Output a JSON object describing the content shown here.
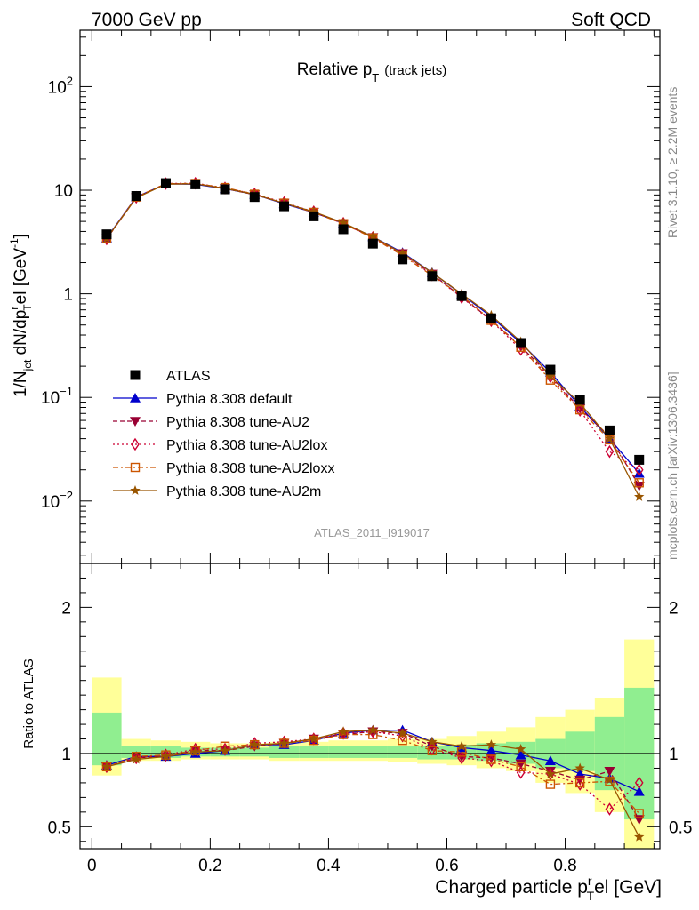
{
  "header": {
    "left": "7000 GeV pp",
    "right": "Soft QCD"
  },
  "side_labels": {
    "rivet": "Rivet 3.1.10, ≥ 2.2M events",
    "mcplots": "mcplots.cern.ch [arXiv:1306.3436]"
  },
  "chart_data": [
    {
      "type": "line",
      "title": "Relative p_T (track jets)",
      "ylabel": "1/N_jet dN/dp_T^rel [GeV^-1]",
      "xlabel": "Charged particle p_T^rel [GeV]",
      "yscale": "log",
      "ylim": [
        0.0025,
        350
      ],
      "xlim": [
        -0.02,
        0.96
      ],
      "yticks": [
        "10^-2",
        "10^-1",
        "1",
        "10",
        "10^2"
      ],
      "xticks": [
        "0",
        "0.2",
        "0.4",
        "0.6",
        "0.8"
      ],
      "watermark": "ATLAS_2011_I919017",
      "legend_position": "bottom-left",
      "x": [
        0.025,
        0.075,
        0.125,
        0.175,
        0.225,
        0.275,
        0.325,
        0.375,
        0.425,
        0.475,
        0.525,
        0.575,
        0.625,
        0.675,
        0.725,
        0.775,
        0.825,
        0.875,
        0.925
      ],
      "series": [
        {
          "name": "ATLAS",
          "color": "#000000",
          "marker": "square",
          "dash": "none",
          "values": [
            3.75,
            8.8,
            11.7,
            11.4,
            10.2,
            8.6,
            7.0,
            5.6,
            4.2,
            3.05,
            2.15,
            1.48,
            0.95,
            0.58,
            0.335,
            0.185,
            0.095,
            0.048,
            0.025
          ]
        },
        {
          "name": "Pythia 8.308 default",
          "color": "#0000cc",
          "marker": "triangle-up",
          "dash": "none",
          "values": [
            3.45,
            8.6,
            11.5,
            11.4,
            10.35,
            9.1,
            7.4,
            6.1,
            4.8,
            3.55,
            2.5,
            1.6,
            0.99,
            0.6,
            0.335,
            0.175,
            0.082,
            0.04,
            0.0185
          ]
        },
        {
          "name": "Pythia 8.308 tune-AU2",
          "color": "#990033",
          "marker": "triangle-down",
          "dash": "5,3",
          "values": [
            3.4,
            8.5,
            11.5,
            11.6,
            10.4,
            9.05,
            7.5,
            6.15,
            4.75,
            3.5,
            2.45,
            1.55,
            0.93,
            0.56,
            0.31,
            0.162,
            0.078,
            0.042,
            0.014
          ]
        },
        {
          "name": "Pythia 8.308 tune-AU2lox",
          "color": "#cc0033",
          "marker": "diamond-open",
          "dash": "2,3",
          "values": [
            3.38,
            8.55,
            11.6,
            11.7,
            10.5,
            9.2,
            7.6,
            6.2,
            4.8,
            3.5,
            2.4,
            1.52,
            0.92,
            0.55,
            0.29,
            0.158,
            0.075,
            0.03,
            0.02
          ]
        },
        {
          "name": "Pythia 8.308 tune-AU2loxx",
          "color": "#cc5500",
          "marker": "square-open",
          "dash": "6,3,2,3",
          "values": [
            3.42,
            8.6,
            11.55,
            11.6,
            10.6,
            9.15,
            7.5,
            6.1,
            4.75,
            3.45,
            2.35,
            1.5,
            0.96,
            0.555,
            0.305,
            0.147,
            0.076,
            0.039,
            0.015
          ]
        },
        {
          "name": "Pythia 8.308 tune-AU2m",
          "color": "#995500",
          "marker": "star",
          "dash": "none",
          "values": [
            3.42,
            8.45,
            11.45,
            11.5,
            10.4,
            9.1,
            7.5,
            6.2,
            4.85,
            3.55,
            2.45,
            1.6,
            1.0,
            0.62,
            0.345,
            0.16,
            0.088,
            0.04,
            0.011
          ]
        }
      ]
    },
    {
      "type": "line",
      "ylabel": "Ratio to ATLAS",
      "xlabel": "Charged particle p_T^rel [GeV]",
      "ylim": [
        0.35,
        2.3
      ],
      "xlim": [
        -0.02,
        0.96
      ],
      "yticks": [
        "0.5",
        "1",
        "2"
      ],
      "xticks": [
        "0",
        "0.2",
        "0.4",
        "0.6",
        "0.8"
      ],
      "reference": 1,
      "bands": {
        "inner_color": "#90ee90",
        "outer_color": "#ffff99",
        "inner": [
          [
            0.92,
            1.28
          ],
          [
            0.97,
            1.05
          ],
          [
            0.97,
            1.05
          ],
          [
            0.98,
            1.04
          ],
          [
            0.98,
            1.04
          ],
          [
            0.98,
            1.04
          ],
          [
            0.97,
            1.05
          ],
          [
            0.97,
            1.05
          ],
          [
            0.97,
            1.05
          ],
          [
            0.97,
            1.05
          ],
          [
            0.97,
            1.05
          ],
          [
            0.96,
            1.05
          ],
          [
            0.96,
            1.06
          ],
          [
            0.95,
            1.07
          ],
          [
            0.93,
            1.08
          ],
          [
            0.9,
            1.1
          ],
          [
            0.88,
            1.15
          ],
          [
            0.75,
            1.25
          ],
          [
            0.55,
            1.45
          ]
        ],
        "outer": [
          [
            0.85,
            1.52
          ],
          [
            0.95,
            1.1
          ],
          [
            0.95,
            1.09
          ],
          [
            0.96,
            1.08
          ],
          [
            0.96,
            1.07
          ],
          [
            0.96,
            1.07
          ],
          [
            0.95,
            1.08
          ],
          [
            0.95,
            1.08
          ],
          [
            0.95,
            1.09
          ],
          [
            0.95,
            1.09
          ],
          [
            0.94,
            1.1
          ],
          [
            0.93,
            1.1
          ],
          [
            0.92,
            1.12
          ],
          [
            0.9,
            1.15
          ],
          [
            0.88,
            1.18
          ],
          [
            0.8,
            1.25
          ],
          [
            0.73,
            1.3
          ],
          [
            0.6,
            1.38
          ],
          [
            0.35,
            1.78
          ]
        ]
      },
      "series": [
        {
          "name": "Pythia 8.308 default",
          "color": "#0000cc",
          "marker": "triangle-up",
          "dash": "none",
          "values": [
            0.92,
            0.98,
            0.98,
            1.0,
            1.02,
            1.06,
            1.06,
            1.09,
            1.14,
            1.16,
            1.16,
            1.08,
            1.04,
            1.02,
            0.99,
            0.95,
            0.86,
            0.83,
            0.74
          ]
        },
        {
          "name": "Pythia 8.308 tune-AU2",
          "color": "#990033",
          "marker": "triangle-down",
          "dash": "5,3",
          "values": [
            0.91,
            0.97,
            0.98,
            1.02,
            1.02,
            1.05,
            1.07,
            1.1,
            1.13,
            1.15,
            1.14,
            1.05,
            0.98,
            0.97,
            0.93,
            0.88,
            0.82,
            0.88,
            0.55
          ]
        },
        {
          "name": "Pythia 8.308 tune-AU2lox",
          "color": "#cc0033",
          "marker": "diamond-open",
          "dash": "2,3",
          "values": [
            0.91,
            0.97,
            0.99,
            1.03,
            1.03,
            1.07,
            1.08,
            1.1,
            1.14,
            1.15,
            1.12,
            1.03,
            0.97,
            0.95,
            0.87,
            0.86,
            0.79,
            0.62,
            0.8
          ]
        },
        {
          "name": "Pythia 8.308 tune-AU2loxx",
          "color": "#cc5500",
          "marker": "square-open",
          "dash": "6,3,2,3",
          "values": [
            0.91,
            0.98,
            0.99,
            1.02,
            1.05,
            1.06,
            1.07,
            1.09,
            1.13,
            1.13,
            1.09,
            1.02,
            1.01,
            0.96,
            0.91,
            0.79,
            0.8,
            0.81,
            0.59
          ]
        },
        {
          "name": "Pythia 8.308 tune-AU2m",
          "color": "#995500",
          "marker": "star",
          "dash": "none",
          "values": [
            0.91,
            0.96,
            0.98,
            1.01,
            1.02,
            1.06,
            1.07,
            1.1,
            1.15,
            1.16,
            1.14,
            1.08,
            1.05,
            1.06,
            1.03,
            0.86,
            0.9,
            0.82,
            0.43
          ]
        }
      ]
    }
  ]
}
